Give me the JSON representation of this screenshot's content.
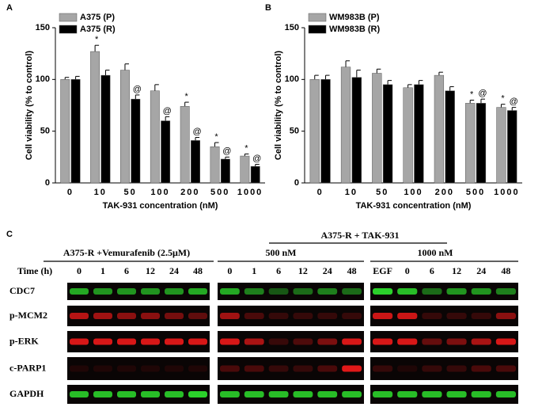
{
  "chart_data": [
    {
      "type": "bar",
      "label": "A",
      "xlabel": "TAK-931 concentration (nM)",
      "ylabel": "Cell viability (% to control)",
      "categories": [
        "0",
        "10",
        "50",
        "100",
        "200",
        "500",
        "1000"
      ],
      "series": [
        {
          "name": "A375 (P)",
          "color": "#a6a6a6",
          "values": [
            100,
            127,
            109,
            89,
            74,
            35,
            26
          ],
          "errors": [
            2,
            6,
            6,
            6,
            4,
            4,
            2
          ],
          "annotations": [
            null,
            "*",
            null,
            null,
            "*",
            "*",
            "*"
          ]
        },
        {
          "name": "A375 (R)",
          "color": "#000000",
          "values": [
            100,
            104,
            81,
            60,
            41,
            23,
            16
          ],
          "errors": [
            3,
            5,
            4,
            4,
            3,
            2,
            2
          ],
          "annotations": [
            null,
            null,
            "@",
            "@",
            "@",
            "@",
            "@"
          ]
        }
      ],
      "ylim": [
        0,
        150
      ],
      "yticks": [
        0,
        50,
        100,
        150
      ],
      "legend": "top-left"
    },
    {
      "type": "bar",
      "label": "B",
      "xlabel": "TAK-931 concentration (nM)",
      "ylabel": "Cell viability (% to control)",
      "categories": [
        "0",
        "10",
        "50",
        "100",
        "200",
        "500",
        "1000"
      ],
      "series": [
        {
          "name": "WM983B (P)",
          "color": "#a6a6a6",
          "values": [
            100,
            112,
            106,
            92,
            104,
            77,
            73
          ],
          "errors": [
            4,
            6,
            4,
            3,
            3,
            3,
            3
          ],
          "annotations": [
            null,
            null,
            null,
            null,
            null,
            "*",
            "*"
          ]
        },
        {
          "name": "WM983B (R)",
          "color": "#000000",
          "values": [
            100,
            102,
            95,
            95,
            89,
            77,
            70
          ],
          "errors": [
            4,
            7,
            4,
            4,
            4,
            4,
            3
          ],
          "annotations": [
            null,
            null,
            null,
            null,
            null,
            "@",
            "@"
          ]
        }
      ],
      "ylim": [
        0,
        150
      ],
      "yticks": [
        0,
        50,
        100,
        150
      ],
      "legend": "top-left"
    }
  ],
  "blot": {
    "label": "C",
    "treatment_label": "A375-R + TAK-931",
    "time_label": "Time (h)",
    "groups": [
      {
        "label": "A375-R +Vemurafenib (2.5μM)",
        "lanes": [
          "0",
          "1",
          "6",
          "12",
          "24",
          "48"
        ]
      },
      {
        "label": "500 nM",
        "lanes": [
          "0",
          "1",
          "6",
          "12",
          "24",
          "48"
        ]
      },
      {
        "label": "1000 nM",
        "lanes": [
          "EGF",
          "0",
          "6",
          "12",
          "24",
          "48"
        ]
      }
    ],
    "rows": [
      "CDC7",
      "p-MCM2",
      "p-ERK",
      "c-PARP1",
      "GAPDH"
    ]
  }
}
